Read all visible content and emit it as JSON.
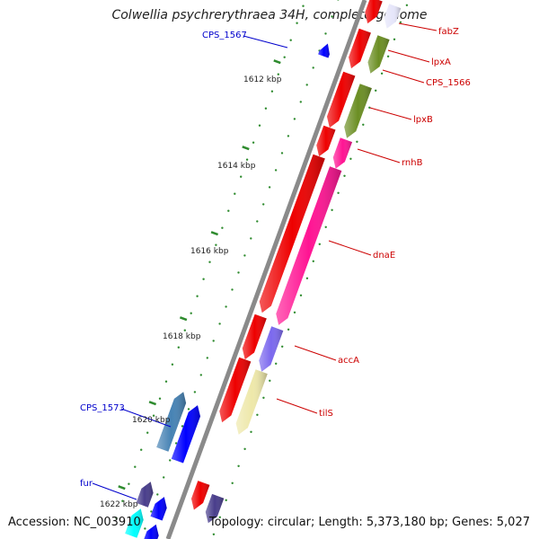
{
  "title": "Colwellia psychrerythraea 34H, complete genome",
  "footer": {
    "accession": "Accession: NC_003910",
    "topology": "Topology: circular; Length: 5,373,180 bp; Genes: 5,027"
  },
  "colors": {
    "backbone": "#8a8a8a",
    "tick_dots": "#2e8b2e",
    "label_red": "#cc0000",
    "label_blue": "#0000cc",
    "gene_red": "#ee0000",
    "gene_olive": "#6b8e23",
    "gene_pink": "#ff1493",
    "gene_purple": "#7b68ee",
    "gene_khaki": "#eee8aa",
    "gene_navy": "#483d8b",
    "gene_blue": "#0000ff",
    "gene_steel": "#4682b4",
    "gene_cyan": "#00ffff",
    "gene_lavender": "#e6e6fa"
  },
  "scale_labels": [
    "1612 kbp",
    "1614 kbp",
    "1616 kbp",
    "1618 kbp",
    "1620 kbp",
    "1622 kbp"
  ],
  "gene_labels": [
    {
      "text": "fabZ",
      "strand": "forward"
    },
    {
      "text": "lpxA",
      "strand": "forward"
    },
    {
      "text": "CPS_1566",
      "strand": "forward"
    },
    {
      "text": "lpxB",
      "strand": "forward"
    },
    {
      "text": "rnhB",
      "strand": "forward"
    },
    {
      "text": "dnaE",
      "strand": "forward"
    },
    {
      "text": "accA",
      "strand": "forward"
    },
    {
      "text": "tilS",
      "strand": "forward"
    },
    {
      "text": "CPS_1567",
      "strand": "reverse"
    },
    {
      "text": "CPS_1573",
      "strand": "reverse"
    },
    {
      "text": "fur",
      "strand": "reverse"
    }
  ]
}
